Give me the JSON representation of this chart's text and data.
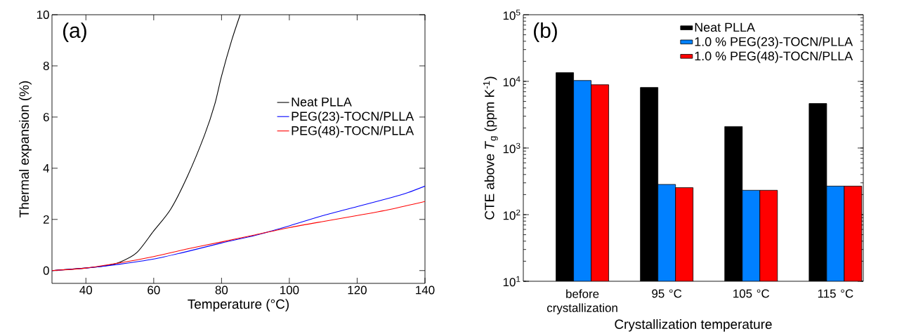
{
  "chart_data": [
    {
      "type": "line",
      "xlabel": "Temperature (°C)",
      "ylabel": "Thermal expansion (%)",
      "annotations": [
        "(a)"
      ],
      "xlim": [
        30,
        140
      ],
      "ylim": [
        -0.5,
        10
      ],
      "xticks": [
        40,
        60,
        80,
        100,
        120,
        140
      ],
      "yticks": [
        0,
        2,
        4,
        6,
        8,
        10
      ],
      "legend": "right",
      "grid": false,
      "marker": "none",
      "line_style": "solid",
      "series": [
        {
          "name": "Neat PLLA",
          "color": "#000000",
          "x": [
            30,
            40,
            45,
            50,
            55,
            60,
            65,
            70,
            75,
            78,
            80,
            83,
            85.5
          ],
          "values": [
            0,
            0.1,
            0.17,
            0.33,
            0.7,
            1.55,
            2.4,
            3.7,
            5.3,
            6.5,
            7.6,
            9.0,
            10
          ]
        },
        {
          "name": "PEG(23)-TOCN/PLLA",
          "color": "#0000ff",
          "x": [
            30,
            40,
            50,
            60,
            70,
            80,
            90,
            100,
            110,
            120,
            130,
            135,
            140
          ],
          "values": [
            0,
            0.1,
            0.25,
            0.45,
            0.75,
            1.08,
            1.38,
            1.75,
            2.15,
            2.5,
            2.85,
            3.05,
            3.3
          ]
        },
        {
          "name": "PEG(48)-TOCN/PLLA",
          "color": "#ff0000",
          "x": [
            30,
            40,
            50,
            60,
            70,
            80,
            90,
            100,
            110,
            120,
            130,
            140
          ],
          "values": [
            0,
            0.1,
            0.3,
            0.55,
            0.85,
            1.12,
            1.4,
            1.68,
            1.92,
            2.15,
            2.4,
            2.7
          ]
        }
      ]
    },
    {
      "type": "bar",
      "xlabel": "Crystallization temperature",
      "ylabel": "CTE above *T*$_{g}$ (ppm K$^{-1}$)",
      "annotations": [
        "(b)"
      ],
      "categories": [
        "before crystallization",
        "95 °C",
        "105 °C",
        "115 °C"
      ],
      "log": "y",
      "ylim": [
        10,
        100000
      ],
      "yticks": [
        {
          "value": 10,
          "label": "10$^{1}$"
        },
        {
          "value": 100,
          "label": "10$^{2}$"
        },
        {
          "value": 1000,
          "label": "10$^{3}$"
        },
        {
          "value": 10000,
          "label": "10$^{4}$"
        },
        {
          "value": 100000,
          "label": "10$^{5}$"
        }
      ],
      "legend": "top right",
      "grid": false,
      "series": [
        {
          "name": "Neat PLLA",
          "color": "#000000",
          "values": [
            13500,
            8100,
            2100,
            4650
          ]
        },
        {
          "name": "1.0 % PEG(23)-TOCN/PLLA",
          "color": "#0080ff",
          "values": [
            10300,
            284,
            232,
            268
          ]
        },
        {
          "name": "1.0 % PEG(48)-TOCN/PLLA",
          "color": "#ff0000",
          "values": [
            8900,
            254,
            232,
            268
          ]
        }
      ]
    }
  ]
}
